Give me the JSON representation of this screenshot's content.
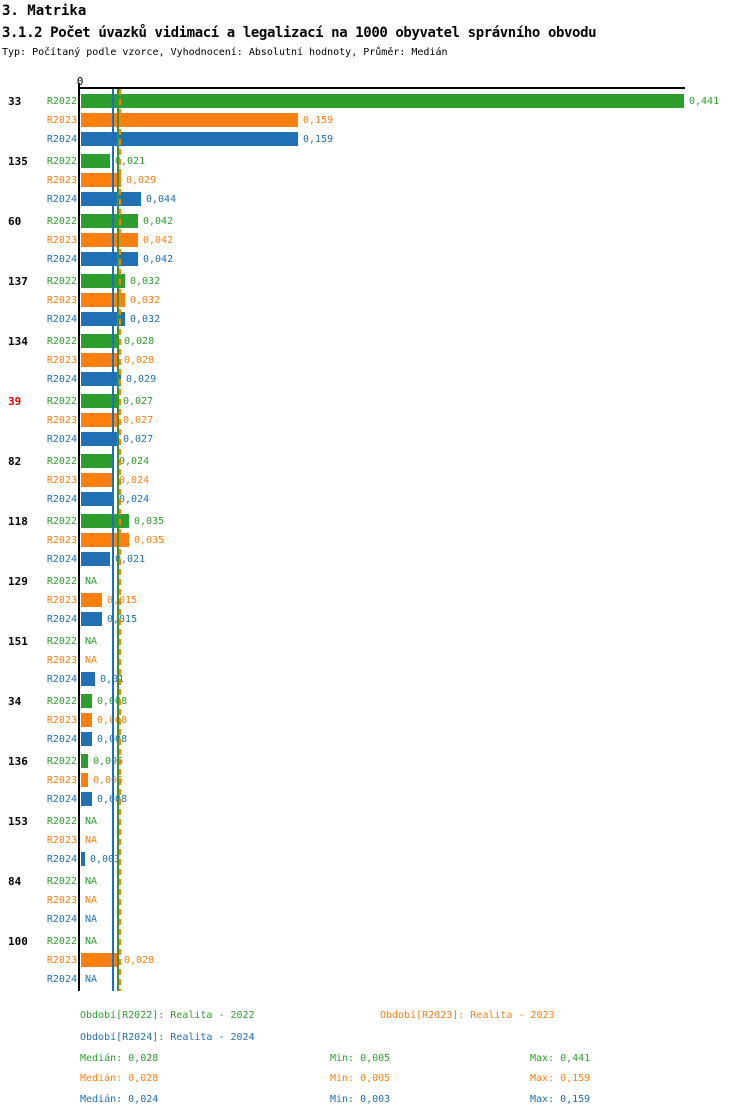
{
  "header": {
    "title": "3. Matrika",
    "subtitle": "3.1.2 Počet úvazků vidimací a legalizací na 1000 obyvatel správního obvodu",
    "meta": "Typ: Počítaný podle vzorce, Vyhodnocení: Absolutní hodnoty, Průměr: Medián"
  },
  "chart_data": {
    "type": "bar",
    "orientation": "horizontal",
    "title": "3.1.2 Počet úvazků vidimací a legalizací na 1000 obyvatel správního obvodu",
    "axis": {
      "zero_label": "0",
      "xlim": [
        0,
        0.441
      ],
      "grid": false
    },
    "na_label": "NA",
    "series": [
      {
        "name": "R2022",
        "color": "#2d9e2d",
        "median": 0.028,
        "min": 0.005,
        "max": 0.441,
        "median_line_style": "solid"
      },
      {
        "name": "R2023",
        "color": "#ff7f0e",
        "median": 0.028,
        "min": 0.005,
        "max": 0.159,
        "median_line_style": "dashed"
      },
      {
        "name": "R2024",
        "color": "#2070b4",
        "median": 0.024,
        "min": 0.003,
        "max": 0.159,
        "median_line_style": "solid"
      }
    ],
    "groups": [
      {
        "id": "33",
        "id_color": "#000000",
        "values": [
          0.441,
          0.159,
          0.159
        ],
        "labels": [
          "0,441",
          "0,159",
          "0,159"
        ]
      },
      {
        "id": "135",
        "id_color": "#000000",
        "values": [
          0.021,
          0.029,
          0.044
        ],
        "labels": [
          "0,021",
          "0,029",
          "0,044"
        ]
      },
      {
        "id": "60",
        "id_color": "#000000",
        "values": [
          0.042,
          0.042,
          0.042
        ],
        "labels": [
          "0,042",
          "0,042",
          "0,042"
        ]
      },
      {
        "id": "137",
        "id_color": "#000000",
        "values": [
          0.032,
          0.032,
          0.032
        ],
        "labels": [
          "0,032",
          "0,032",
          "0,032"
        ]
      },
      {
        "id": "134",
        "id_color": "#000000",
        "values": [
          0.028,
          0.028,
          0.029
        ],
        "labels": [
          "0,028",
          "0,028",
          "0,029"
        ]
      },
      {
        "id": "39",
        "id_color": "#e10000",
        "values": [
          0.027,
          0.027,
          0.027
        ],
        "labels": [
          "0,027",
          "0,027",
          "0,027"
        ]
      },
      {
        "id": "82",
        "id_color": "#000000",
        "values": [
          0.024,
          0.024,
          0.024
        ],
        "labels": [
          "0,024",
          "0,024",
          "0,024"
        ]
      },
      {
        "id": "118",
        "id_color": "#000000",
        "values": [
          0.035,
          0.035,
          0.021
        ],
        "labels": [
          "0,035",
          "0,035",
          "0,021"
        ]
      },
      {
        "id": "129",
        "id_color": "#000000",
        "values": [
          null,
          0.015,
          0.015
        ],
        "labels": [
          "NA",
          "0,015",
          "0,015"
        ]
      },
      {
        "id": "151",
        "id_color": "#000000",
        "values": [
          null,
          null,
          0.01
        ],
        "labels": [
          "NA",
          "NA",
          "0,01"
        ]
      },
      {
        "id": "34",
        "id_color": "#000000",
        "values": [
          0.008,
          0.008,
          0.008
        ],
        "labels": [
          "0,008",
          "0,008",
          "0,008"
        ]
      },
      {
        "id": "136",
        "id_color": "#000000",
        "values": [
          0.005,
          0.005,
          0.008
        ],
        "labels": [
          "0,005",
          "0,005",
          "0,008"
        ]
      },
      {
        "id": "153",
        "id_color": "#000000",
        "values": [
          null,
          null,
          0.003
        ],
        "labels": [
          "NA",
          "NA",
          "0,003"
        ]
      },
      {
        "id": "84",
        "id_color": "#000000",
        "values": [
          null,
          null,
          null
        ],
        "labels": [
          "NA",
          "NA",
          "NA"
        ]
      },
      {
        "id": "100",
        "id_color": "#000000",
        "values": [
          null,
          0.028,
          null
        ],
        "labels": [
          "NA",
          "0,028",
          "NA"
        ]
      }
    ]
  },
  "footer": {
    "legend": [
      {
        "label": "Období[R2022]: Realita - 2022",
        "color": "#2d9e2d"
      },
      {
        "label": "Období[R2023]: Realita - 2023",
        "color": "#ff7f0e"
      },
      {
        "label": "Období[R2024]: Realita - 2024",
        "color": "#2070b4"
      }
    ],
    "stats": [
      {
        "color": "#2d9e2d",
        "median": "Medián: 0,028",
        "min": "Min: 0,005",
        "max": "Max: 0,441"
      },
      {
        "color": "#ff7f0e",
        "median": "Medián: 0,028",
        "min": "Min: 0,005",
        "max": "Max: 0,159"
      },
      {
        "color": "#2070b4",
        "median": "Medián: 0,024",
        "min": "Min: 0,003",
        "max": "Max: 0,159"
      }
    ]
  }
}
